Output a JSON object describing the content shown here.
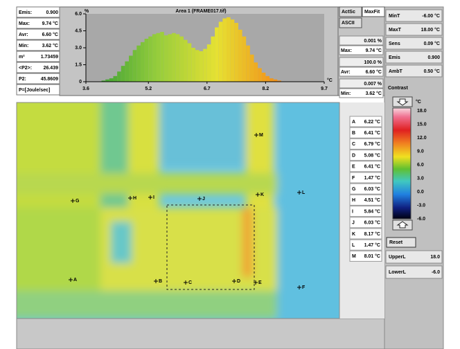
{
  "stats": [
    {
      "label": "Emis:",
      "value": "0.900"
    },
    {
      "label": "Max:",
      "value": "9.74 °C"
    },
    {
      "label": "Avr:",
      "value": "6.60 °C"
    },
    {
      "label": "Min:",
      "value": "3.62 °C"
    },
    {
      "label": "m²",
      "value": "1.73459"
    },
    {
      "label": "<P2>:",
      "value": "26.439"
    },
    {
      "label": "P2:",
      "value": "45.8609"
    },
    {
      "label": "P=[Joule/sec]"
    }
  ],
  "chart_data": {
    "type": "histogram",
    "title": "Area 1 (FRAME017.tif)",
    "y_label": "%",
    "x_label": "°C",
    "bins": [
      3.6,
      3.7,
      3.8,
      3.9,
      4.0,
      4.1,
      4.2,
      4.3,
      4.4,
      4.5,
      4.6,
      4.7,
      4.8,
      4.9,
      5.0,
      5.1,
      5.2,
      5.3,
      5.4,
      5.5,
      5.6,
      5.7,
      5.8,
      5.9,
      6.0,
      6.1,
      6.2,
      6.3,
      6.4,
      6.5,
      6.6,
      6.7,
      6.8,
      6.9,
      7.0,
      7.1,
      7.2,
      7.3,
      7.4,
      7.5,
      7.6,
      7.7,
      7.8,
      7.9,
      8.0,
      8.1,
      8.2,
      8.3,
      8.4,
      8.5,
      8.6,
      8.7,
      8.8,
      8.9,
      9.0,
      9.1,
      9.2,
      9.3,
      9.4,
      9.5,
      9.6,
      9.7
    ],
    "values": [
      0,
      0,
      0,
      0,
      0.1,
      0.2,
      0.3,
      0.5,
      0.9,
      1.4,
      1.8,
      2.3,
      2.8,
      3.2,
      3.5,
      3.8,
      4.0,
      4.2,
      4.3,
      4.4,
      4.1,
      4.2,
      4.3,
      4.2,
      4.0,
      3.7,
      3.4,
      3.0,
      2.8,
      2.7,
      2.9,
      3.3,
      4.0,
      4.8,
      5.3,
      5.6,
      5.7,
      5.5,
      5.2,
      4.6,
      4.0,
      3.2,
      2.4,
      1.7,
      1.2,
      0.8,
      0.5,
      0.3,
      0.2,
      0.1,
      0,
      0,
      0,
      0,
      0,
      0,
      0,
      0,
      0,
      0,
      0
    ],
    "xlim": [
      3.6,
      9.7
    ],
    "xticks": [
      3.6,
      5.2,
      6.7,
      8.2,
      9.7
    ],
    "ylim": [
      0,
      6
    ],
    "yticks": [
      0,
      1.5,
      {
        "value": 3,
        "label": "3.0"
      },
      4.5,
      {
        "value": 6,
        "label": "6.0"
      }
    ]
  },
  "hist_panel": {
    "buttons": [
      "ActSc",
      "MaxFit",
      "ASCII"
    ],
    "rows": [
      {
        "value": "0.001 %"
      },
      {
        "label": "Max:",
        "value": "9.74 °C"
      },
      {
        "value": "100.0 %"
      },
      {
        "label": "Avr:",
        "value": "6.60 °C"
      },
      {
        "value": "0.007 %"
      },
      {
        "label": "Min:",
        "value": "3.62 °C"
      }
    ]
  },
  "settings": [
    {
      "label": "MinT",
      "value": "-6.00 °C"
    },
    {
      "label": "MaxT",
      "value": "18.00 °C"
    },
    {
      "label": "Sens",
      "value": "0.09 °C"
    },
    {
      "label": "Emis",
      "value": "0.900"
    },
    {
      "label": "AmbT",
      "value": "0.50 °C"
    }
  ],
  "contrast": {
    "title": "Contrast",
    "unit": "°C",
    "scale": [
      "18.0",
      "15.0",
      "12.0",
      "9.0",
      "6.0",
      "3.0",
      "0.0",
      "-3.0",
      "-6.0"
    ]
  },
  "reset": "Reset",
  "limits": [
    {
      "label": "UpperL",
      "value": "18.0"
    },
    {
      "label": "LowerL",
      "value": "-6.0"
    }
  ],
  "markers": [
    {
      "label": "A",
      "value": "6.22 °C"
    },
    {
      "label": "B",
      "value": "6.41 °C"
    },
    {
      "label": "C",
      "value": "6.79 °C"
    },
    {
      "label": "D",
      "value": "5.08 °C"
    },
    {
      "label": "E",
      "value": "6.41 °C"
    },
    {
      "label": "F",
      "value": "1.47 °C"
    },
    {
      "label": "G",
      "value": "6.03 °C"
    },
    {
      "label": "H",
      "value": "4.51 °C"
    },
    {
      "label": "I",
      "value": "5.84 °C"
    },
    {
      "label": "J",
      "value": "6.03 °C"
    },
    {
      "label": "K",
      "value": "8.17 °C"
    },
    {
      "label": "L",
      "value": "1.47 °C"
    },
    {
      "label": "M",
      "value": "8.01 °C"
    }
  ]
}
